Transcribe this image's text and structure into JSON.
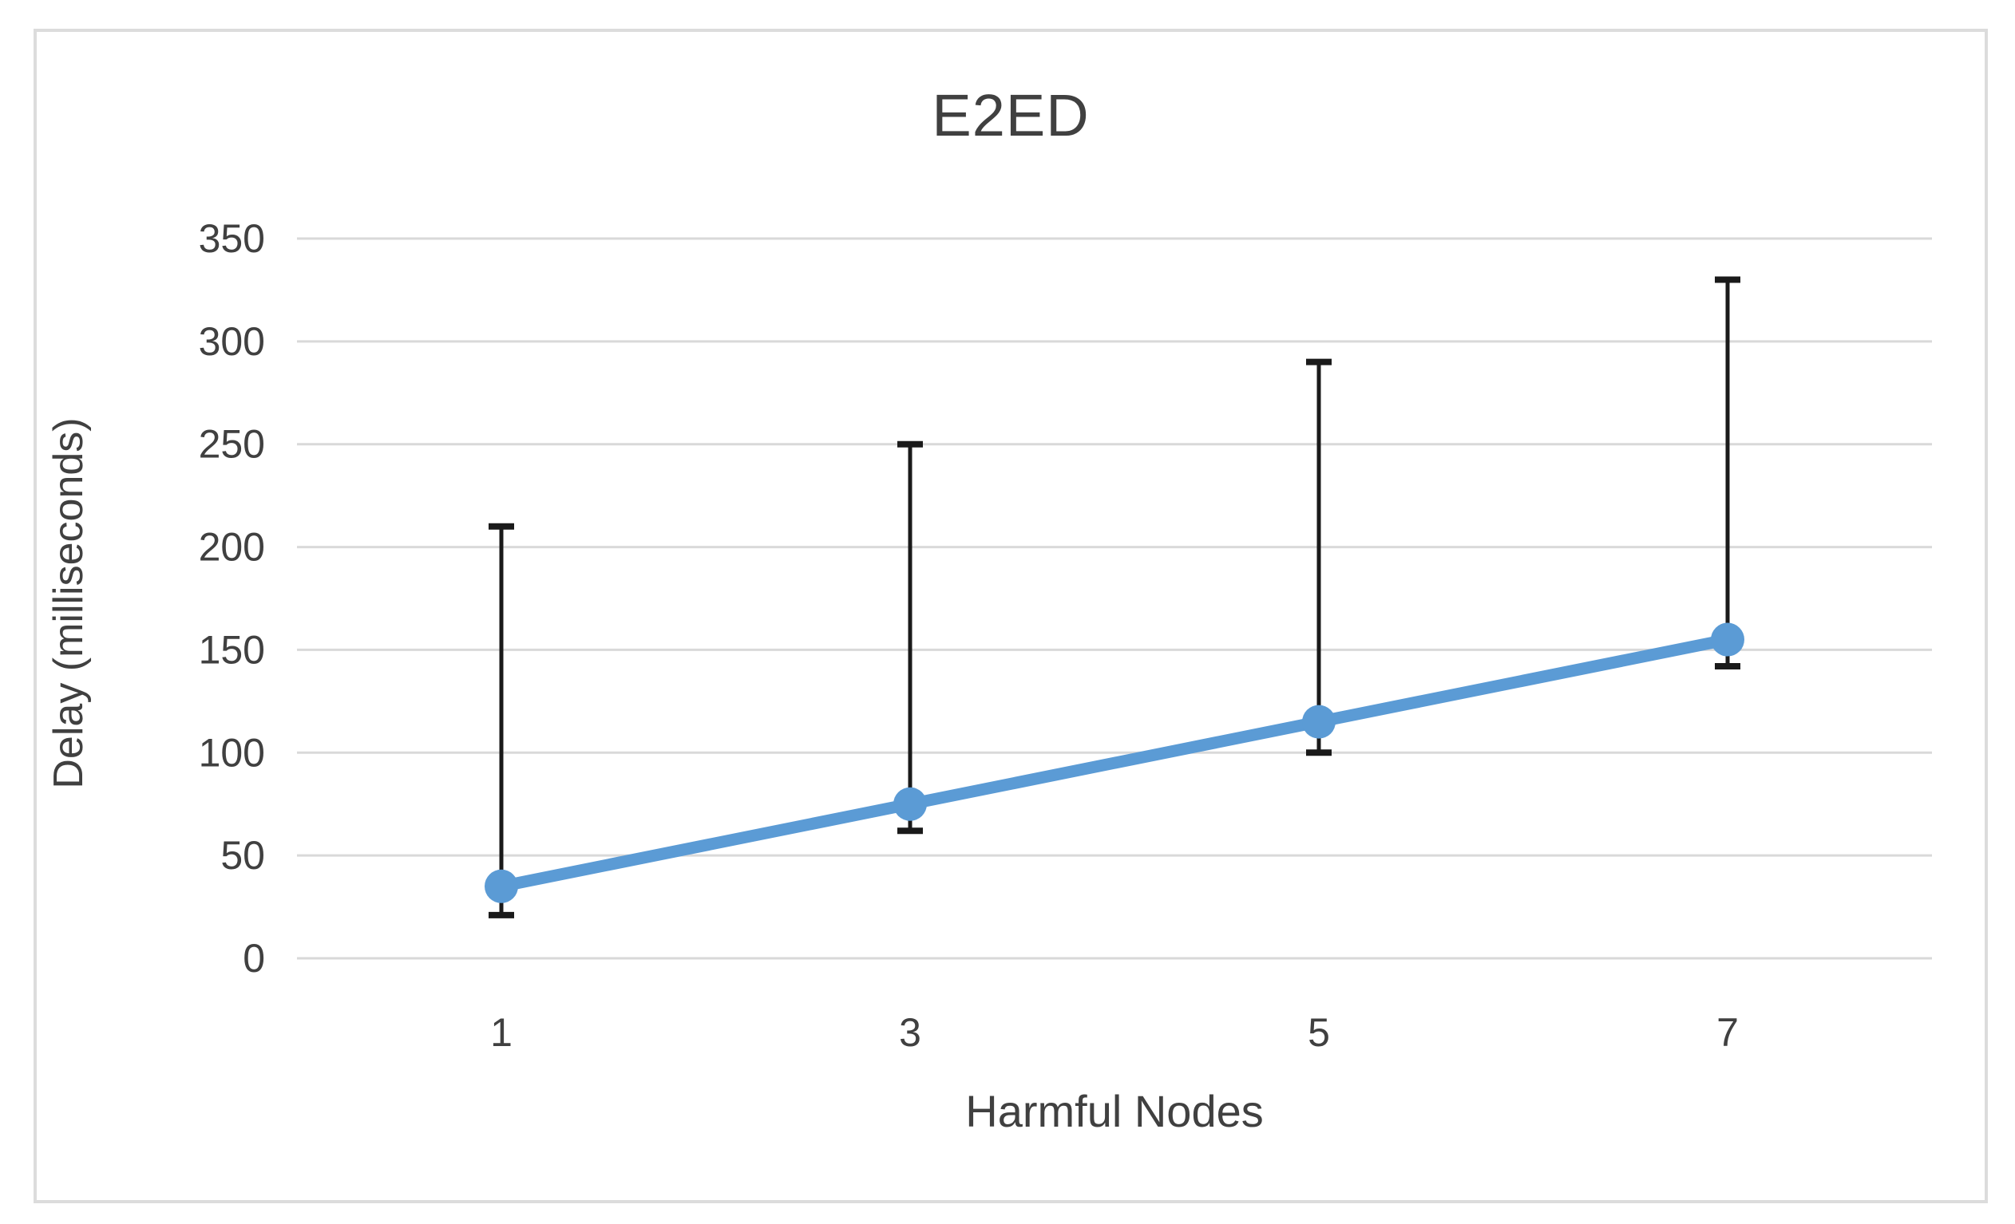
{
  "page": {
    "background_color": "#ffffff",
    "chart_border_color": "#dcdcdc"
  },
  "chart_data": {
    "type": "line",
    "title": "E2ED",
    "xlabel": "Harmful Nodes",
    "ylabel": "Delay (milliseconds)",
    "categories": [
      "1",
      "3",
      "5",
      "7"
    ],
    "series": [
      {
        "name": "E2ED",
        "values": [
          35,
          75,
          115,
          155
        ],
        "error_bar_top": [
          210,
          250,
          290,
          330
        ],
        "error_bar_bottom": [
          21,
          62,
          100,
          142
        ],
        "color": "#5b9bd5"
      }
    ],
    "y_ticks": [
      0,
      50,
      100,
      150,
      200,
      250,
      300,
      350
    ],
    "ylim": [
      0,
      350
    ],
    "grid": "horizontal",
    "gridline_color": "#d9d9d9",
    "error_bar_color": "#1a1a1a",
    "text_color": "#404040",
    "legend_position": "none"
  }
}
